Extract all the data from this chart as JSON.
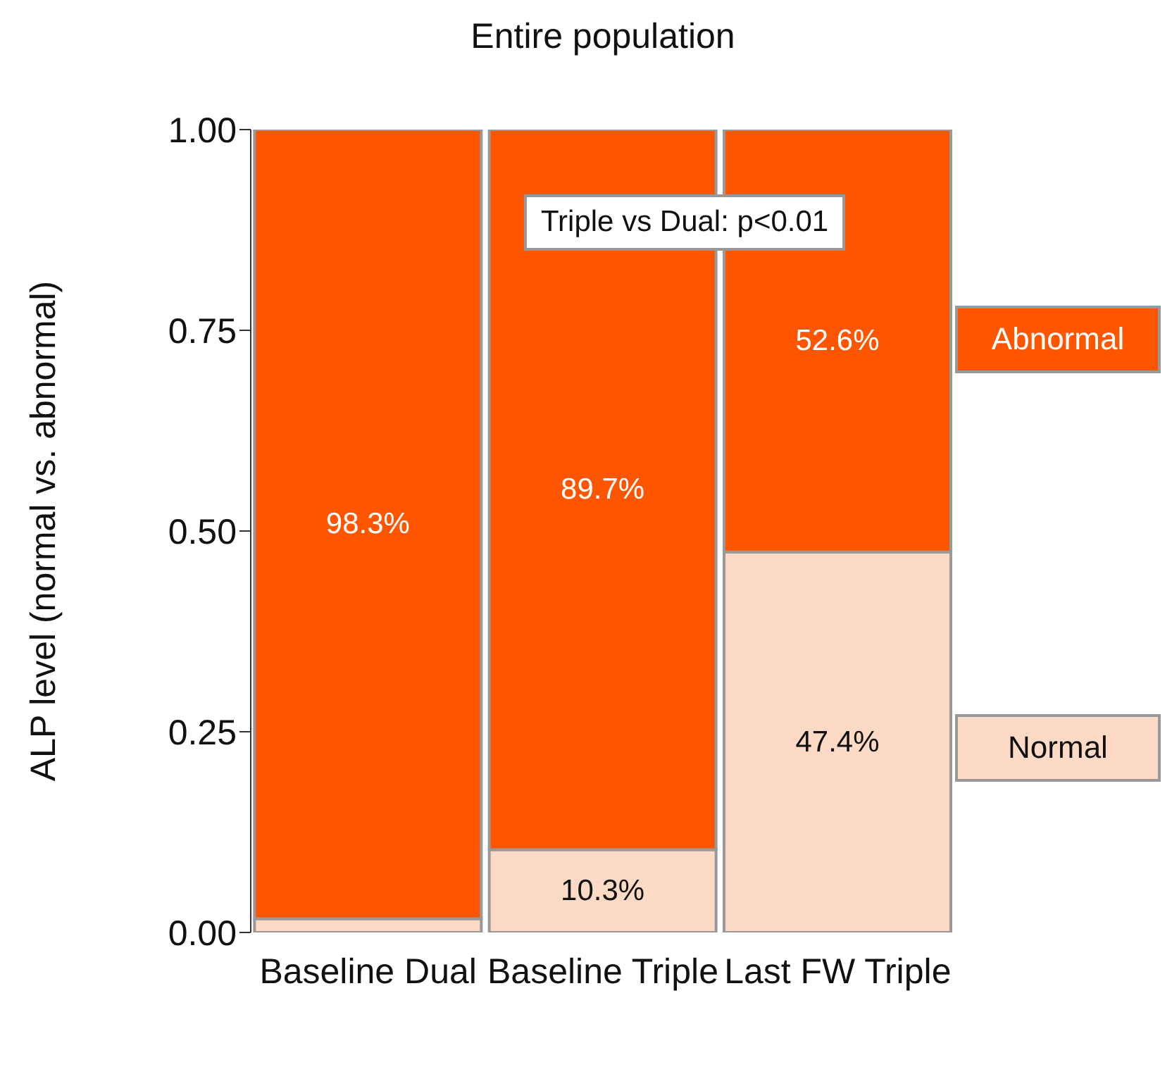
{
  "chart_data": {
    "type": "bar",
    "title": "Entire population",
    "ylabel": "ALP level (normal vs. abnormal)",
    "categories": [
      "Baseline Dual",
      "Baseline Triple",
      "Last FW Triple"
    ],
    "stacked": true,
    "series": [
      {
        "name": "Normal",
        "color": "#fddac5",
        "values": [
          0.017,
          0.103,
          0.474
        ],
        "value_labels": [
          null,
          "10.3%",
          "47.4%"
        ]
      },
      {
        "name": "Abnormal",
        "color": "#fe5500",
        "values": [
          0.983,
          0.897,
          0.526
        ],
        "value_labels": [
          "98.3%",
          "89.7%",
          "52.6%"
        ]
      }
    ],
    "ylim": [
      0,
      1
    ],
    "yticks": [
      {
        "value": 0,
        "label": "0.00"
      },
      {
        "value": 0.25,
        "label": "0.25"
      },
      {
        "value": 0.5,
        "label": "0.50"
      },
      {
        "value": 0.75,
        "label": "0.75"
      },
      {
        "value": 1,
        "label": "1.00"
      }
    ],
    "annotations": [
      "Triple vs Dual: p<0.01"
    ],
    "grid": false,
    "legend": "right"
  }
}
